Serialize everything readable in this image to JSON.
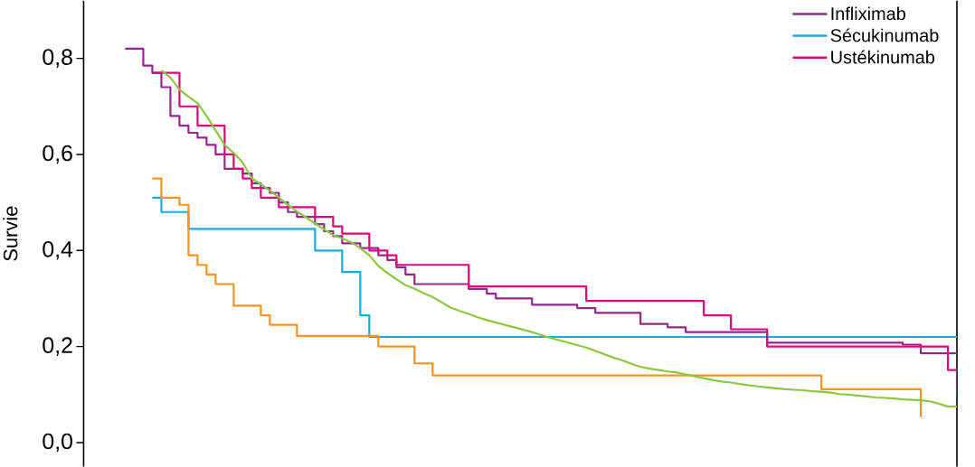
{
  "chart_data": {
    "type": "step",
    "ylabel": "Survie",
    "categories": [
      null,
      null,
      null,
      null,
      null,
      null,
      null,
      null,
      null,
      null,
      null,
      null,
      null,
      null,
      null,
      null,
      null,
      null,
      null,
      null,
      null,
      null,
      null,
      null,
      null,
      null,
      null,
      null,
      null,
      null,
      null,
      null,
      null,
      null,
      null,
      null,
      null,
      null,
      null,
      null,
      null,
      null,
      null,
      null,
      null,
      null,
      null,
      null,
      null,
      null,
      null,
      null,
      null,
      null,
      null,
      null,
      null,
      null,
      null,
      null,
      null,
      null,
      null,
      null,
      null,
      null,
      null,
      null,
      null,
      null,
      null,
      null,
      null,
      null,
      null,
      null,
      null,
      null,
      null,
      null,
      null,
      null,
      null,
      null,
      null,
      null,
      null,
      null,
      null,
      null,
      null,
      null,
      null
    ],
    "ylim": [
      -0.05,
      0.92
    ],
    "yticks": [
      {
        "value": 0,
        "label": "0,0"
      },
      {
        "value": 0.2,
        "label": "0,2"
      },
      {
        "value": 0.4,
        "label": "0,4"
      },
      {
        "value": 0.6,
        "label": "0,6"
      },
      {
        "value": 0.8,
        "label": "0,8"
      }
    ],
    "tick_labels": "y",
    "legend": "top right",
    "series": [
      {
        "name": "Infliximab",
        "color": "#93278f",
        "values": [
          0.82,
          0.82,
          0.785,
          0.77,
          0.74,
          0.68,
          0.66,
          0.645,
          0.635,
          0.62,
          0.6,
          0.57,
          0.57,
          0.56,
          0.54,
          0.53,
          0.52,
          0.5,
          0.48,
          0.47,
          0.47,
          0.455,
          0.44,
          0.43,
          0.415,
          0.415,
          0.405,
          0.405,
          0.39,
          0.38,
          0.365,
          0.35,
          0.33,
          0.33,
          0.33,
          0.33,
          0.33,
          0.33,
          0.32,
          0.32,
          0.31,
          0.3,
          0.3,
          0.3,
          0.3,
          0.287,
          0.287,
          0.287,
          0.287,
          0.287,
          0.28,
          0.28,
          0.27,
          0.27,
          0.27,
          0.27,
          0.27,
          0.247,
          0.247,
          0.247,
          0.24,
          0.24,
          0.23,
          0.23,
          0.23,
          0.23,
          0.23,
          0.23,
          0.23,
          0.23,
          0.23,
          0.208,
          0.208,
          0.208,
          0.208,
          0.208,
          0.208,
          0.208,
          0.208,
          0.208,
          0.208,
          0.208,
          0.208,
          0.208,
          0.208,
          0.208,
          0.204,
          0.204,
          0.186,
          0.186,
          0.186,
          0.186,
          0.186
        ]
      },
      {
        "name": "Sécukinumab",
        "color": "#1ca9e1",
        "values": [
          null,
          null,
          null,
          0.51,
          0.48,
          0.48,
          0.48,
          0.445,
          0.445,
          0.445,
          0.445,
          0.445,
          0.445,
          0.445,
          0.445,
          0.445,
          0.445,
          0.445,
          0.445,
          0.445,
          0.445,
          0.4,
          0.4,
          0.4,
          0.355,
          0.355,
          0.265,
          0.22,
          0.22,
          0.22,
          0.22,
          0.22,
          0.22,
          0.22,
          0.22,
          0.22,
          0.22,
          0.22,
          0.22,
          0.22,
          0.22,
          0.22,
          0.22,
          0.22,
          0.22,
          0.22,
          0.22,
          0.22,
          0.22,
          0.22,
          0.22,
          0.22,
          0.22,
          0.22,
          0.22,
          0.22,
          0.22,
          0.22,
          0.22,
          0.22,
          0.22,
          0.22,
          0.22,
          0.22,
          0.22,
          0.22,
          0.22,
          0.22,
          0.22,
          0.22,
          0.22,
          0.22,
          0.22,
          0.22,
          0.22,
          0.22,
          0.22,
          0.22,
          0.22,
          0.22,
          0.22,
          0.22,
          0.22,
          0.22,
          0.22,
          0.22,
          0.22,
          0.22,
          0.22,
          0.22,
          0.22,
          0.22,
          0.22
        ]
      },
      {
        "name": "Ustékinumab",
        "color": "#e5007e",
        "values": [
          null,
          null,
          null,
          0.77,
          0.77,
          0.77,
          0.7,
          0.7,
          0.66,
          0.66,
          0.66,
          0.6,
          0.57,
          0.55,
          0.53,
          0.51,
          0.51,
          0.49,
          0.49,
          0.49,
          0.49,
          0.47,
          0.47,
          0.45,
          0.435,
          0.435,
          0.435,
          0.4,
          0.4,
          0.39,
          0.37,
          0.37,
          0.37,
          0.37,
          0.37,
          0.37,
          0.37,
          0.37,
          0.325,
          0.325,
          0.325,
          0.325,
          0.325,
          0.325,
          0.325,
          0.325,
          0.325,
          0.325,
          0.325,
          0.325,
          0.325,
          0.295,
          0.295,
          0.295,
          0.295,
          0.295,
          0.295,
          0.295,
          0.295,
          0.295,
          0.295,
          0.295,
          0.295,
          0.295,
          0.265,
          0.265,
          0.265,
          0.236,
          0.236,
          0.236,
          0.236,
          0.2,
          0.2,
          0.2,
          0.2,
          0.2,
          0.2,
          0.2,
          0.2,
          0.2,
          0.2,
          0.2,
          0.2,
          0.2,
          0.2,
          0.2,
          0.2,
          0.2,
          0.2,
          0.2,
          0.2,
          0.151,
          0.097
        ]
      },
      {
        "color": "#f7941d",
        "values": [
          null,
          null,
          null,
          0.55,
          0.51,
          0.51,
          0.495,
          0.39,
          0.37,
          0.35,
          0.33,
          0.33,
          0.285,
          0.285,
          0.285,
          0.265,
          0.245,
          0.245,
          0.245,
          0.222,
          0.222,
          0.222,
          0.222,
          0.222,
          0.222,
          0.222,
          0.222,
          0.222,
          0.2,
          0.2,
          0.2,
          0.2,
          0.165,
          0.165,
          0.14,
          0.14,
          0.14,
          0.14,
          0.14,
          0.14,
          0.14,
          0.14,
          0.14,
          0.14,
          0.14,
          0.14,
          0.14,
          0.14,
          0.14,
          0.14,
          0.14,
          0.14,
          0.14,
          0.14,
          0.14,
          0.14,
          0.14,
          0.14,
          0.14,
          0.14,
          0.14,
          0.14,
          0.14,
          0.14,
          0.14,
          0.14,
          0.14,
          0.14,
          0.14,
          0.14,
          0.14,
          0.14,
          0.14,
          0.14,
          0.14,
          0.14,
          0.14,
          0.111,
          0.111,
          0.111,
          0.111,
          0.111,
          0.111,
          0.111,
          0.111,
          0.111,
          0.111,
          0.111,
          0.053,
          null,
          null,
          null,
          null
        ]
      },
      {
        "type": "line",
        "color": "#8dc63f",
        "values": [
          null,
          null,
          null,
          null,
          0.775,
          0.76,
          0.735,
          0.72,
          0.707,
          0.68,
          0.65,
          0.62,
          0.603,
          0.583,
          0.55,
          0.538,
          0.525,
          0.51,
          0.495,
          0.481,
          0.469,
          0.456,
          0.444,
          0.432,
          0.425,
          0.417,
          0.405,
          0.39,
          0.368,
          0.353,
          0.34,
          0.328,
          0.32,
          0.311,
          0.303,
          0.292,
          0.281,
          0.274,
          0.268,
          0.261,
          0.255,
          0.25,
          0.245,
          0.24,
          0.235,
          0.23,
          0.224,
          0.218,
          0.213,
          0.208,
          0.203,
          0.198,
          0.191,
          0.184,
          0.177,
          0.171,
          0.164,
          0.158,
          0.154,
          0.151,
          0.148,
          0.146,
          0.142,
          0.138,
          0.134,
          0.13,
          0.127,
          0.125,
          0.122,
          0.119,
          0.117,
          0.115,
          0.113,
          0.111,
          0.11,
          0.109,
          0.107,
          0.106,
          0.104,
          0.101,
          0.1,
          0.098,
          0.096,
          0.094,
          0.093,
          0.092,
          0.09,
          0.089,
          0.088,
          0.086,
          0.081,
          0.075,
          0.075
        ]
      }
    ]
  }
}
